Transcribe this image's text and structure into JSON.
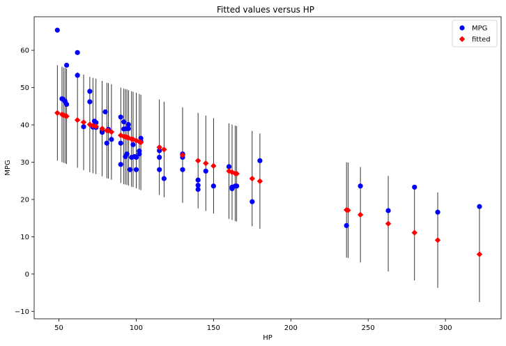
{
  "chart_data": {
    "type": "scatter",
    "title": "Fitted values versus HP",
    "xlabel": "HP",
    "ylabel": "MPG",
    "xlim": [
      34,
      336
    ],
    "ylim": [
      -12,
      69
    ],
    "xticks": [
      "50",
      "100",
      "150",
      "200",
      "250",
      "300"
    ],
    "xtick_values": [
      50,
      100,
      150,
      200,
      250,
      300
    ],
    "yticks": [
      "−10",
      "0",
      "10",
      "20",
      "30",
      "40",
      "50",
      "60"
    ],
    "ytick_values": [
      -10,
      0,
      10,
      20,
      30,
      40,
      50,
      60
    ],
    "grid": false,
    "legend_position": "top-right",
    "series": [
      {
        "name": "MPG",
        "marker": "circle",
        "color": "#0000ff",
        "points": [
          [
            49,
            65.4
          ],
          [
            52,
            47.0
          ],
          [
            53,
            46.8
          ],
          [
            54,
            46.3
          ],
          [
            55,
            56.0
          ],
          [
            55,
            45.5
          ],
          [
            62,
            59.4
          ],
          [
            62,
            53.3
          ],
          [
            66,
            39.5
          ],
          [
            70,
            49.0
          ],
          [
            70,
            46.2
          ],
          [
            72,
            39.4
          ],
          [
            73,
            41.0
          ],
          [
            74,
            40.6
          ],
          [
            74,
            39.3
          ],
          [
            78,
            38.0
          ],
          [
            78,
            38.4
          ],
          [
            80,
            43.5
          ],
          [
            81,
            35.1
          ],
          [
            82,
            38.8
          ],
          [
            84,
            36.1
          ],
          [
            90,
            42.1
          ],
          [
            90,
            35.1
          ],
          [
            90,
            29.4
          ],
          [
            92,
            40.8
          ],
          [
            92,
            38.9
          ],
          [
            93,
            31.5
          ],
          [
            94,
            39.0
          ],
          [
            94,
            32.2
          ],
          [
            95,
            40.1
          ],
          [
            95,
            39.0
          ],
          [
            96,
            28.0
          ],
          [
            97,
            31.3
          ],
          [
            98,
            34.7
          ],
          [
            99,
            31.5
          ],
          [
            100,
            28.0
          ],
          [
            100,
            31.3
          ],
          [
            102,
            32.2
          ],
          [
            102,
            33.0
          ],
          [
            103,
            36.4
          ],
          [
            103,
            35.6
          ],
          [
            115,
            33.1
          ],
          [
            115,
            31.3
          ],
          [
            115,
            28.0
          ],
          [
            118,
            25.6
          ],
          [
            130,
            32.2
          ],
          [
            130,
            31.3
          ],
          [
            130,
            28.0
          ],
          [
            140,
            25.2
          ],
          [
            140,
            23.8
          ],
          [
            140,
            22.7
          ],
          [
            145,
            27.6
          ],
          [
            150,
            23.6
          ],
          [
            160,
            28.8
          ],
          [
            162,
            23.3
          ],
          [
            162,
            22.9
          ],
          [
            164,
            23.6
          ],
          [
            165,
            23.6
          ],
          [
            175,
            19.4
          ],
          [
            180,
            30.4
          ],
          [
            236,
            13.0
          ],
          [
            245,
            23.6
          ],
          [
            263,
            17.0
          ],
          [
            280,
            23.3
          ],
          [
            295,
            16.6
          ],
          [
            322,
            18.1
          ]
        ]
      },
      {
        "name": "fitted",
        "marker": "diamond",
        "color": "#ff0000",
        "points": [
          [
            49,
            43.2
          ],
          [
            52,
            42.8
          ],
          [
            53,
            42.6
          ],
          [
            54,
            42.5
          ],
          [
            55,
            42.3
          ],
          [
            62,
            41.3
          ],
          [
            66,
            40.7
          ],
          [
            70,
            40.1
          ],
          [
            72,
            39.8
          ],
          [
            74,
            39.6
          ],
          [
            78,
            39.0
          ],
          [
            81,
            38.5
          ],
          [
            82,
            38.4
          ],
          [
            84,
            38.1
          ],
          [
            90,
            37.2
          ],
          [
            92,
            36.9
          ],
          [
            93,
            36.8
          ],
          [
            94,
            36.7
          ],
          [
            95,
            36.5
          ],
          [
            97,
            36.2
          ],
          [
            98,
            36.1
          ],
          [
            100,
            35.8
          ],
          [
            102,
            35.5
          ],
          [
            103,
            35.3
          ],
          [
            115,
            34.0
          ],
          [
            118,
            33.4
          ],
          [
            130,
            31.9
          ],
          [
            140,
            30.4
          ],
          [
            145,
            29.7
          ],
          [
            150,
            29.0
          ],
          [
            160,
            27.6
          ],
          [
            162,
            27.3
          ],
          [
            164,
            27.0
          ],
          [
            165,
            26.9
          ],
          [
            175,
            25.6
          ],
          [
            180,
            24.9
          ],
          [
            236,
            17.2
          ],
          [
            237,
            17.1
          ],
          [
            245,
            15.9
          ],
          [
            263,
            13.5
          ],
          [
            280,
            11.1
          ],
          [
            295,
            9.1
          ],
          [
            322,
            5.3
          ]
        ]
      }
    ],
    "error_bar_half_width": 12.8
  }
}
